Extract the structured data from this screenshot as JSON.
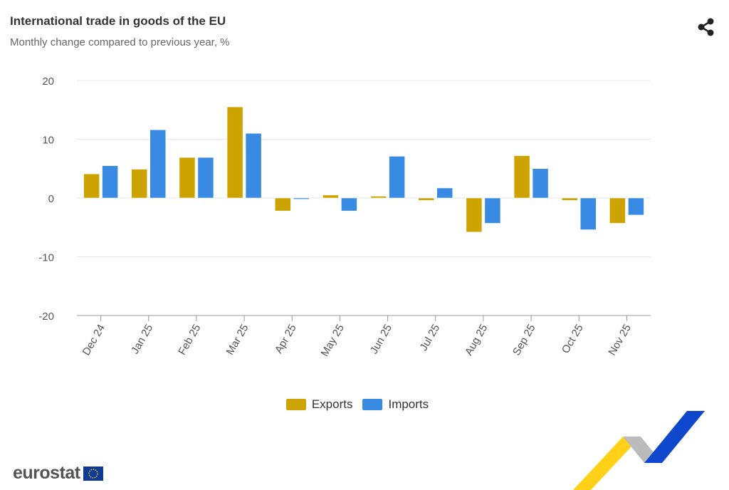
{
  "header": {
    "title": "International trade in goods of the EU",
    "subtitle": "Monthly change compared to previous year, %",
    "share_icon": "share-icon"
  },
  "chart_data": {
    "type": "bar",
    "title": "International trade in goods of the EU",
    "subtitle": "Monthly change compared to previous year, %",
    "categories": [
      "Dec 24",
      "Jan 25",
      "Feb 25",
      "Mar 25",
      "Apr 25",
      "May 25",
      "Jun 25",
      "Jul 25",
      "Aug 25",
      "Sep 25",
      "Oct 25",
      "Nov 25"
    ],
    "series": [
      {
        "name": "Exports",
        "color": "#cca300",
        "values": [
          4.1,
          4.9,
          6.9,
          15.5,
          -2.2,
          0.5,
          0.3,
          -0.4,
          -5.8,
          7.2,
          -0.4,
          -4.3
        ]
      },
      {
        "name": "Imports",
        "color": "#388ae2",
        "values": [
          5.5,
          11.6,
          6.9,
          11.0,
          -0.2,
          -2.2,
          7.1,
          1.7,
          -4.3,
          5.0,
          -5.4,
          -2.9
        ]
      }
    ],
    "ylim": [
      -20,
      20
    ],
    "yticks": [
      "20",
      "10",
      "0",
      "-10",
      "-20"
    ],
    "grid": true,
    "legend": "bottom"
  },
  "footer": {
    "logo_text": "eurostat"
  }
}
